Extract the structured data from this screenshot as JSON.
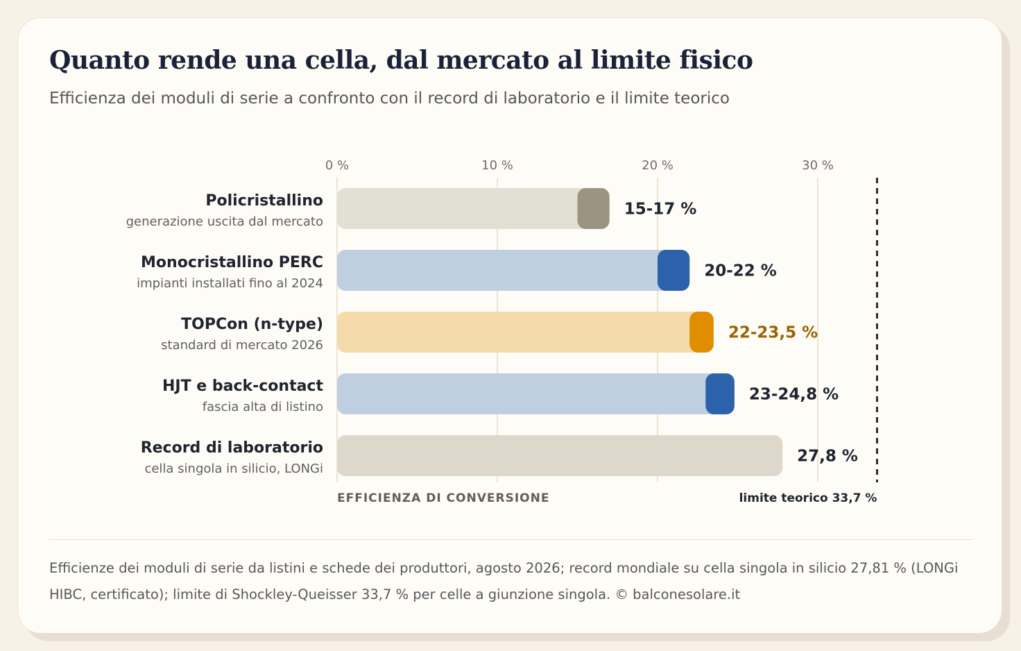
{
  "title": "Quanto rende una cella, dal mercato al limite fisico",
  "subtitle": "Efficienza dei moduli di serie a confronto con il record di laboratorio e il limite teorico",
  "footnote": "Efficienze dei moduli di serie da listini e schede dei produttori, agosto 2026; record mondiale su cella singola in silicio 27,81 % (LONGi HIBC, certificato); limite di Shockley-Queisser 33,7 % per celle a giunzione singola. © balconesolare.it",
  "chart_data": {
    "type": "bar",
    "orientation": "horizontal",
    "title": "Quanto rende una cella, dal mercato al limite fisico",
    "subtitle": "Efficienza dei moduli di serie a confronto con il record di laboratorio e il limite teorico",
    "xlabel": "EFFICIENZA DI CONVERSIONE",
    "xlim": [
      0,
      35
    ],
    "xticks": [
      0,
      10,
      20,
      30
    ],
    "xtick_labels": [
      "0 %",
      "10 %",
      "20 %",
      "30 %"
    ],
    "grid": true,
    "reference_line": {
      "value": 33.7,
      "label": "limite teorico 33,7 %",
      "style": "dashed",
      "color": "#2b2b2b"
    },
    "categories": [
      {
        "name": "Policristallino",
        "note": "generazione uscita dal mercato",
        "min": 15,
        "max": 17,
        "label": "15-17 %",
        "base_color": "#e2dfd5",
        "range_color": "#9b9482",
        "label_color": "#1f2430"
      },
      {
        "name": "Monocristallino PERC",
        "note": "impianti installati fino al 2024",
        "min": 20,
        "max": 22,
        "label": "20-22 %",
        "base_color": "#bfcfe0",
        "range_color": "#2b62ab",
        "label_color": "#1f2430"
      },
      {
        "name": "TOPCon (n-type)",
        "note": "standard di mercato 2026",
        "min": 22,
        "max": 23.5,
        "label": "22-23,5 %",
        "base_color": "#f5dbac",
        "range_color": "#e08d00",
        "label_color": "#9a6300"
      },
      {
        "name": "HJT e back-contact",
        "note": "fascia alta di listino",
        "min": 23,
        "max": 24.8,
        "label": "23-24,8 %",
        "base_color": "#bfcfe0",
        "range_color": "#2b62ab",
        "label_color": "#1f2430"
      },
      {
        "name": "Record di laboratorio",
        "note": "cella singola in silicio, LONGi",
        "min": null,
        "max": 27.8,
        "label": "27,8 %",
        "base_color": "#ddd8cb",
        "range_color": null,
        "label_color": "#1f2430"
      }
    ],
    "colors": {
      "grid": "#e7dcc8",
      "tick_label": "#6d6d70",
      "category_name": "#1f2430",
      "category_note": "#5e5f63",
      "axis_title": "#5f5e5b"
    }
  }
}
